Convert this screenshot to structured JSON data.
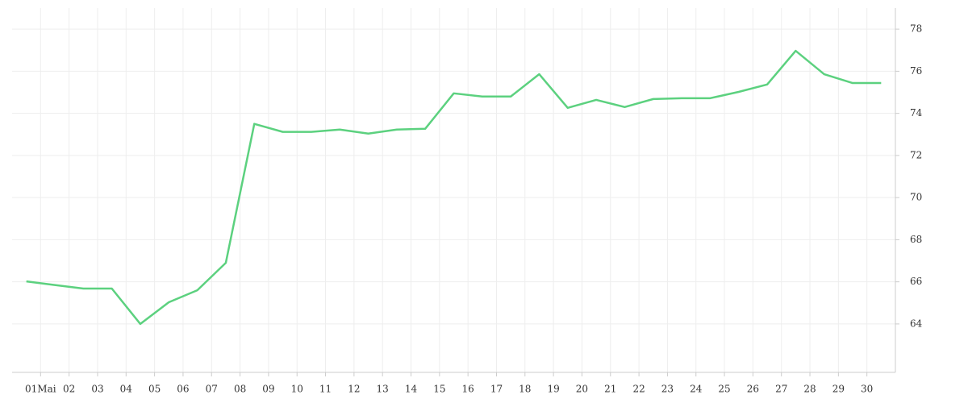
{
  "chart_data": {
    "type": "line",
    "x": [
      0.5,
      1.5,
      2.5,
      3.5,
      4.5,
      5.5,
      6.5,
      7.5,
      8.5,
      9.5,
      10.5,
      11.5,
      12.5,
      13.5,
      14.5,
      15.5,
      16.5,
      17.5,
      18.5,
      19.5,
      20.5,
      21.5,
      22.5,
      23.5,
      24.5,
      25.5,
      26.5,
      27.5,
      28.5,
      29.5,
      30.5
    ],
    "series": [
      {
        "color": "#5cd17f",
        "values": [
          66.02,
          65.85,
          65.68,
          65.68,
          64.0,
          65.03,
          65.6,
          66.9,
          73.5,
          73.12,
          73.12,
          73.23,
          73.04,
          73.23,
          73.27,
          74.95,
          74.8,
          74.8,
          75.86,
          74.26,
          74.64,
          74.3,
          74.68,
          74.72,
          74.72,
          75.02,
          75.37,
          76.97,
          75.86,
          75.44,
          75.44
        ]
      }
    ],
    "xlim": [
      0,
      31
    ],
    "xticks": [
      {
        "value": 1,
        "label": "01Mai"
      },
      {
        "value": 2,
        "label": "02"
      },
      {
        "value": 3,
        "label": "03"
      },
      {
        "value": 4,
        "label": "04"
      },
      {
        "value": 5,
        "label": "05"
      },
      {
        "value": 6,
        "label": "06"
      },
      {
        "value": 7,
        "label": "07"
      },
      {
        "value": 8,
        "label": "08"
      },
      {
        "value": 9,
        "label": "09"
      },
      {
        "value": 10,
        "label": "10"
      },
      {
        "value": 11,
        "label": "11"
      },
      {
        "value": 12,
        "label": "12"
      },
      {
        "value": 13,
        "label": "13"
      },
      {
        "value": 14,
        "label": "14"
      },
      {
        "value": 15,
        "label": "15"
      },
      {
        "value": 16,
        "label": "16"
      },
      {
        "value": 17,
        "label": "17"
      },
      {
        "value": 18,
        "label": "18"
      },
      {
        "value": 19,
        "label": "19"
      },
      {
        "value": 20,
        "label": "20"
      },
      {
        "value": 21,
        "label": "21"
      },
      {
        "value": 22,
        "label": "22"
      },
      {
        "value": 23,
        "label": "23"
      },
      {
        "value": 24,
        "label": "24"
      },
      {
        "value": 25,
        "label": "25"
      },
      {
        "value": 26,
        "label": "26"
      },
      {
        "value": 27,
        "label": "27"
      },
      {
        "value": 28,
        "label": "28"
      },
      {
        "value": 29,
        "label": "29"
      },
      {
        "value": 30,
        "label": "30"
      }
    ],
    "ylim": [
      61.7,
      79
    ],
    "yticks": [
      64,
      66,
      68,
      70,
      72,
      74,
      76,
      78
    ],
    "grid": true
  }
}
